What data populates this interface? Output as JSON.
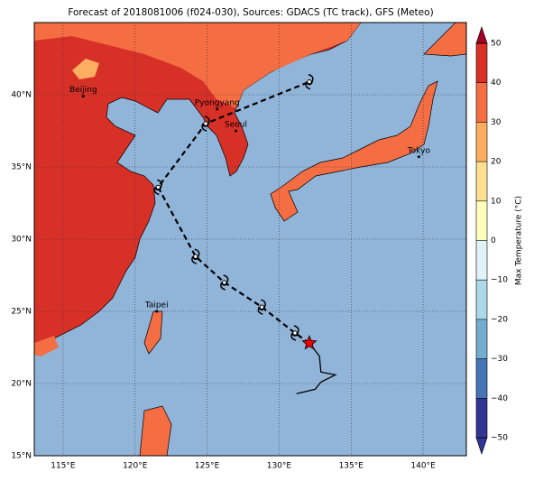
{
  "title": "Forecast of 2018081006 (f024-030), Sources: GDACS (TC track), GFS (Meteo)",
  "map": {
    "lonlim": [
      113,
      143
    ],
    "latlim": [
      15,
      45
    ],
    "lonticks": [
      {
        "value": 115,
        "label": "115°E"
      },
      {
        "value": 120,
        "label": "120°E"
      },
      {
        "value": 125,
        "label": "125°E"
      },
      {
        "value": 130,
        "label": "130°E"
      },
      {
        "value": 135,
        "label": "135°E"
      },
      {
        "value": 140,
        "label": "140°E"
      }
    ],
    "latticks": [
      {
        "value": 15,
        "label": "15°N"
      },
      {
        "value": 20,
        "label": "20°N"
      },
      {
        "value": 25,
        "label": "25°N"
      },
      {
        "value": 30,
        "label": "30°N"
      },
      {
        "value": 35,
        "label": "35°N"
      },
      {
        "value": 40,
        "label": "40°N"
      }
    ],
    "cities": [
      {
        "name": "Beijing",
        "lon": 116.4,
        "lat": 39.9
      },
      {
        "name": "Pyongyang",
        "lon": 125.7,
        "lat": 39.0
      },
      {
        "name": "Seoul",
        "lon": 127.0,
        "lat": 37.5
      },
      {
        "name": "Tokyo",
        "lon": 139.7,
        "lat": 35.7
      },
      {
        "name": "Taipei",
        "lon": 121.5,
        "lat": 25.0
      }
    ],
    "forecast_track": {
      "lon": [
        132.1,
        131.1,
        128.8,
        126.2,
        124.2,
        121.6,
        124.9,
        132.1
      ],
      "lat": [
        22.8,
        23.5,
        25.3,
        27.0,
        28.8,
        33.6,
        38.0,
        40.9
      ]
    },
    "observed_track": {
      "lon": [
        132.1,
        132.8,
        132.9,
        133.9,
        132.9,
        132.5,
        131.2
      ],
      "lat": [
        22.8,
        21.9,
        20.8,
        20.6,
        20.1,
        19.6,
        19.3
      ]
    }
  },
  "colorbar": {
    "label": "Max Temperature (°C)",
    "lim": [
      -50,
      50
    ],
    "ticks": [
      {
        "value": -50,
        "label": "−50"
      },
      {
        "value": -40,
        "label": "−40"
      },
      {
        "value": -30,
        "label": "−30"
      },
      {
        "value": -20,
        "label": "−20"
      },
      {
        "value": -10,
        "label": "−10"
      },
      0,
      10,
      20,
      30,
      40,
      50
    ],
    "colors": [
      "#313695",
      "#4575b4",
      "#74add1",
      "#abd9e9",
      "#e0f3f8",
      "#ffffbf",
      "#fee090",
      "#fdae61",
      "#f46d43",
      "#d73027",
      "#a50026"
    ]
  }
}
